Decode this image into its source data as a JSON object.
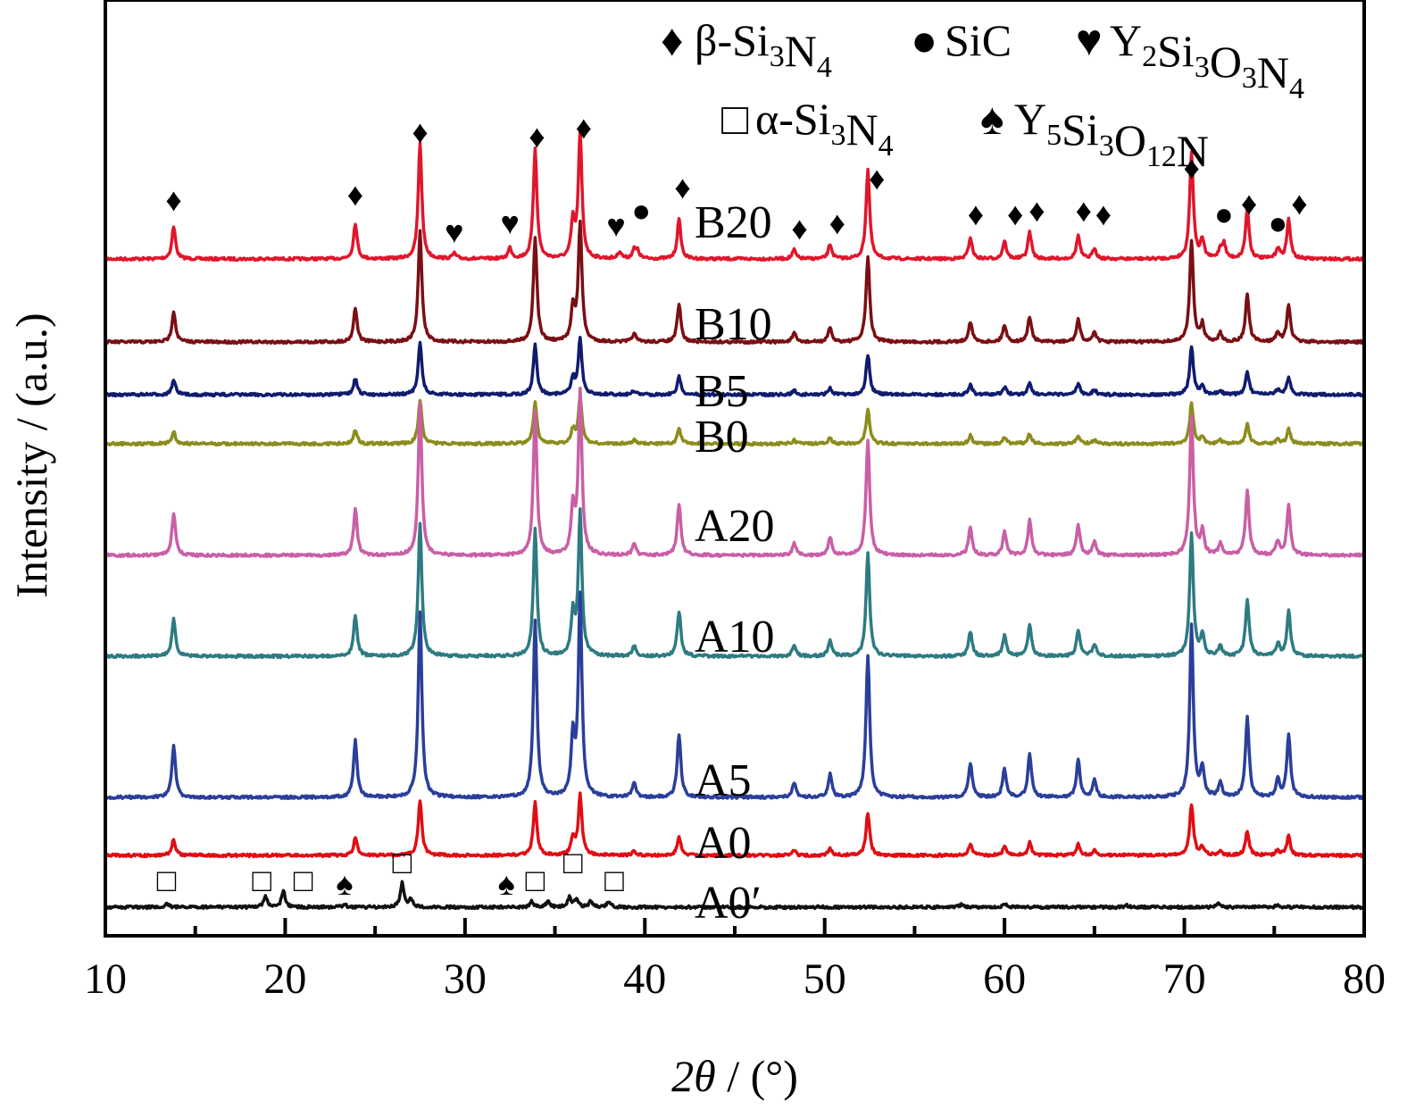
{
  "chart_data": {
    "type": "line",
    "title": "",
    "xlabel_italic": "2θ",
    "xlabel_unit": " / (°)",
    "ylabel": "Intensity / (a.u.)",
    "xlim": [
      10,
      80
    ],
    "xticks": [
      10,
      20,
      30,
      40,
      50,
      60,
      70,
      80
    ],
    "xtick_labels": [
      "10",
      "20",
      "30",
      "40",
      "50",
      "60",
      "70",
      "80"
    ],
    "grid": false,
    "legend_position": "top-right",
    "legend": [
      {
        "marker": "diamond",
        "label": "β-Si",
        "sub1": "3",
        "mid": "N",
        "sub2": "4"
      },
      {
        "marker": "circle",
        "label": "SiC"
      },
      {
        "marker": "heart",
        "label": "Y",
        "sub1": "2",
        "mid": "Si",
        "sub2": "3",
        "mid2": "O",
        "sub3": "3",
        "mid3": "N",
        "sub4": "4"
      },
      {
        "marker": "square",
        "label": "α-Si",
        "sub1": "3",
        "mid": "N",
        "sub2": "4"
      },
      {
        "marker": "spade",
        "label": "Y",
        "sub1": "5",
        "mid": "Si",
        "sub2": "3",
        "mid2": "O",
        "sub3": "12",
        "mid3": "N"
      }
    ],
    "phase_peaks": {
      "beta_Si3N4": [
        13.8,
        23.9,
        27.5,
        33.9,
        36.2,
        41.9,
        48.3,
        50.3,
        52.4,
        58.1,
        60.2,
        61.3,
        64.1,
        65.0,
        70.4,
        73.5,
        75.8
      ],
      "SiC": [
        39.6,
        72.0,
        75.2
      ],
      "Y2Si3O3N4": [
        29.4,
        32.5,
        38.4
      ],
      "alpha_Si3N4": [
        13.4,
        20.0,
        21.0,
        26.5,
        34.6,
        35.3,
        36.0,
        38.3
      ],
      "Y5Si3O12N": [
        23.2,
        32.5
      ]
    },
    "series": [
      {
        "name": "B20",
        "color": "#e0162b",
        "baseline": 0.88,
        "scale": 1.0,
        "phase": "beta_full"
      },
      {
        "name": "B10",
        "color": "#7a0f14",
        "baseline": 0.88,
        "scale": 0.95,
        "phase": "beta"
      },
      {
        "name": "B5",
        "color": "#0f1c6e",
        "baseline": 0.88,
        "scale": 0.45,
        "phase": "beta"
      },
      {
        "name": "B0",
        "color": "#8c8c1e",
        "baseline": 0.88,
        "scale": 0.38,
        "phase": "beta"
      },
      {
        "name": "A20",
        "color": "#c95fa6",
        "baseline": 0.88,
        "scale": 1.3,
        "phase": "beta_full"
      },
      {
        "name": "A10",
        "color": "#2e7b82",
        "baseline": 0.88,
        "scale": 1.15,
        "phase": "beta"
      },
      {
        "name": "A5",
        "color": "#2a3f9a",
        "baseline": 0.88,
        "scale": 1.6,
        "phase": "beta"
      },
      {
        "name": "A0",
        "color": "#e00e14",
        "baseline": 0.88,
        "scale": 0.48,
        "phase": "beta"
      },
      {
        "name": "A0′",
        "color": "#111111",
        "baseline": 0.88,
        "scale": 0.45,
        "phase": "alpha"
      }
    ],
    "peak_markers_B20": [
      {
        "symbol": "diamond",
        "x": 13.8
      },
      {
        "symbol": "diamond",
        "x": 23.9
      },
      {
        "symbol": "diamond",
        "x": 27.5
      },
      {
        "symbol": "diamond",
        "x": 34.0
      },
      {
        "symbol": "diamond",
        "x": 36.6
      },
      {
        "symbol": "heart",
        "x": 29.4
      },
      {
        "symbol": "heart",
        "x": 32.5
      },
      {
        "symbol": "heart",
        "x": 38.4
      },
      {
        "symbol": "circle",
        "x": 39.8
      },
      {
        "symbol": "diamond",
        "x": 42.1
      },
      {
        "symbol": "diamond",
        "x": 48.6
      },
      {
        "symbol": "diamond",
        "x": 50.7
      },
      {
        "symbol": "diamond",
        "x": 52.9
      },
      {
        "symbol": "diamond",
        "x": 58.4
      },
      {
        "symbol": "diamond",
        "x": 60.6
      },
      {
        "symbol": "diamond",
        "x": 61.8
      },
      {
        "symbol": "diamond",
        "x": 64.4
      },
      {
        "symbol": "diamond",
        "x": 65.5
      },
      {
        "symbol": "diamond",
        "x": 70.4
      },
      {
        "symbol": "circle",
        "x": 72.2
      },
      {
        "symbol": "diamond",
        "x": 73.6
      },
      {
        "symbol": "circle",
        "x": 75.2
      },
      {
        "symbol": "diamond",
        "x": 76.4
      }
    ],
    "peak_markers_A0prime": [
      {
        "symbol": "square",
        "x": 13.4
      },
      {
        "symbol": "square",
        "x": 18.7
      },
      {
        "symbol": "square",
        "x": 21.0
      },
      {
        "symbol": "spade",
        "x": 23.3
      },
      {
        "symbol": "square",
        "x": 26.5
      },
      {
        "symbol": "spade",
        "x": 32.3
      },
      {
        "symbol": "square",
        "x": 33.9
      },
      {
        "symbol": "square",
        "x": 36.0
      },
      {
        "symbol": "square",
        "x": 38.3
      }
    ]
  }
}
